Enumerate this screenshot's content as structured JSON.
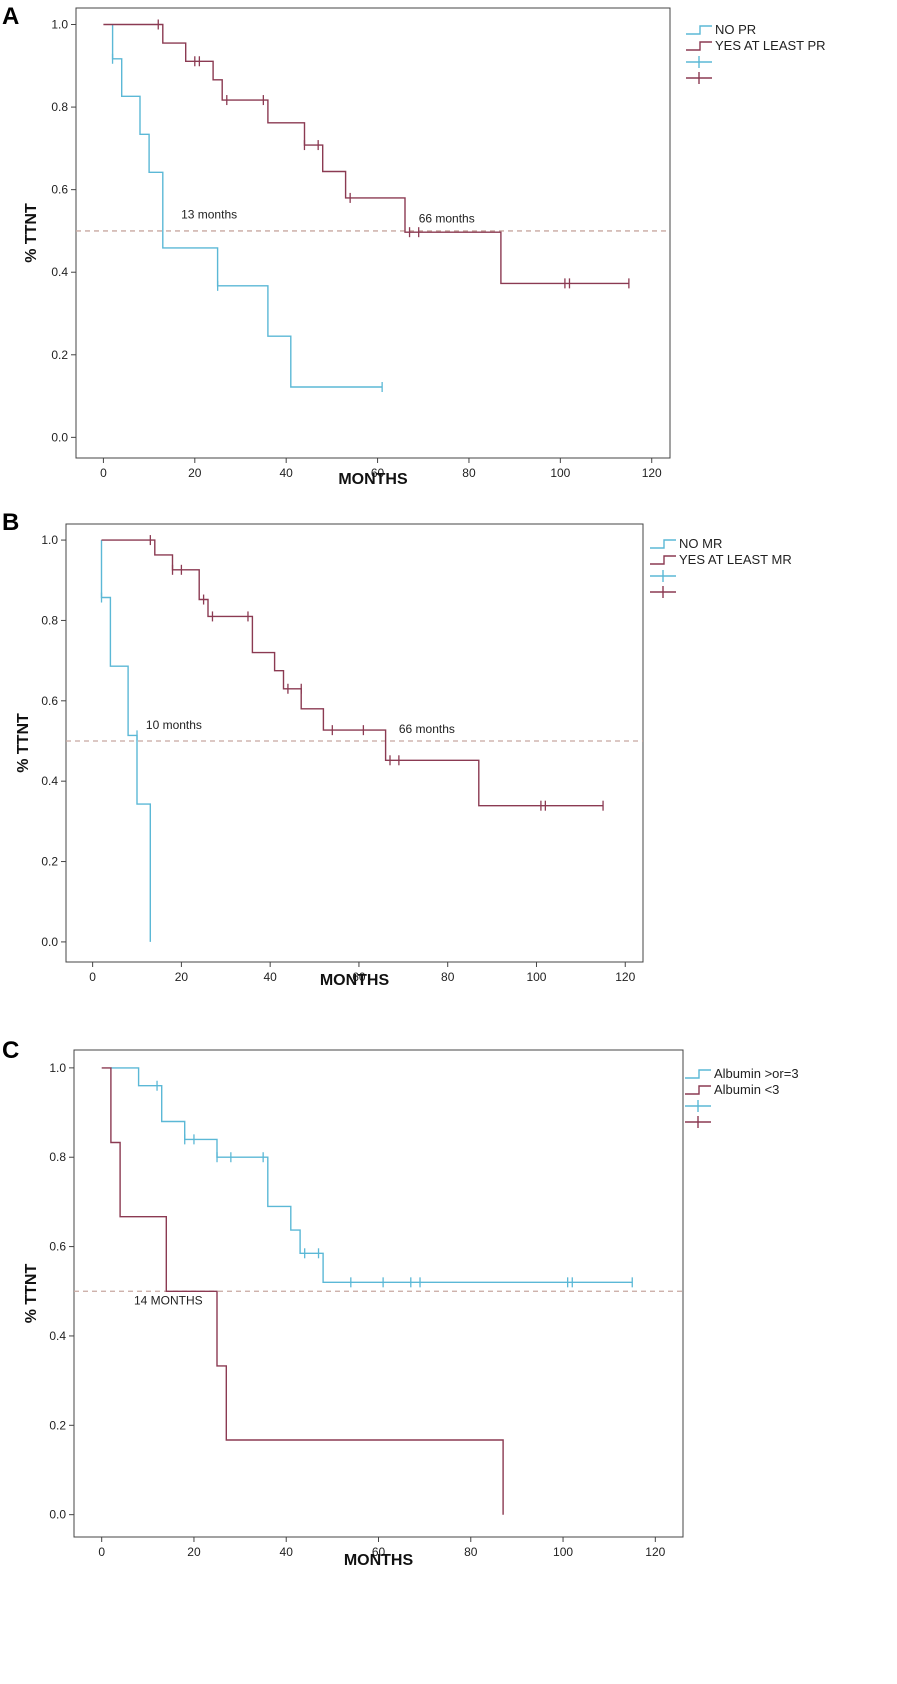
{
  "colors": {
    "blue": "#5bb8d6",
    "maroon": "#8b3a52",
    "median": "#c8a8a0"
  },
  "chart_data": [
    {
      "panel": "A",
      "type": "line",
      "xlabel": "MONTHS",
      "ylabel": "% TTNT",
      "xlim": [
        -6,
        124
      ],
      "ylim": [
        -0.05,
        1.04
      ],
      "xticks": [
        0,
        20,
        40,
        60,
        80,
        100,
        120
      ],
      "yticks": [
        0.0,
        0.2,
        0.4,
        0.6,
        0.8,
        1.0
      ],
      "median_line": 0.5,
      "legend": [
        "NO PR",
        "YES AT LEAST PR",
        "",
        ""
      ],
      "annotations": [
        {
          "text": "13 months",
          "x": 17,
          "y": 0.53
        },
        {
          "text": "66 months",
          "x": 69,
          "y": 0.52
        }
      ],
      "series": [
        {
          "name": "NO PR",
          "color": "blue",
          "points": [
            [
              2,
              1.0
            ],
            [
              2,
              0.917
            ],
            [
              4,
              0.917
            ],
            [
              4,
              0.826
            ],
            [
              8,
              0.826
            ],
            [
              8,
              0.734
            ],
            [
              10,
              0.734
            ],
            [
              10,
              0.642
            ],
            [
              13,
              0.642
            ],
            [
              13,
              0.459
            ],
            [
              25,
              0.459
            ],
            [
              25,
              0.367
            ],
            [
              36,
              0.367
            ],
            [
              36,
              0.245
            ],
            [
              41,
              0.245
            ],
            [
              41,
              0.122
            ],
            [
              61,
              0.122
            ]
          ],
          "censored": [
            [
              2,
              0.917
            ],
            [
              25,
              0.367
            ],
            [
              61,
              0.122
            ]
          ]
        },
        {
          "name": "YES AT LEAST PR",
          "color": "maroon",
          "points": [
            [
              0,
              1.0
            ],
            [
              13,
              1.0
            ],
            [
              13,
              0.955
            ],
            [
              18,
              0.955
            ],
            [
              18,
              0.911
            ],
            [
              24,
              0.911
            ],
            [
              24,
              0.866
            ],
            [
              26,
              0.866
            ],
            [
              26,
              0.817
            ],
            [
              36,
              0.817
            ],
            [
              36,
              0.762
            ],
            [
              44,
              0.762
            ],
            [
              44,
              0.708
            ],
            [
              48,
              0.708
            ],
            [
              48,
              0.644
            ],
            [
              53,
              0.644
            ],
            [
              53,
              0.58
            ],
            [
              66,
              0.58
            ],
            [
              66,
              0.497
            ],
            [
              87,
              0.497
            ],
            [
              87,
              0.373
            ],
            [
              115,
              0.373
            ]
          ],
          "censored": [
            [
              12,
              1.0
            ],
            [
              20,
              0.911
            ],
            [
              21,
              0.911
            ],
            [
              27,
              0.817
            ],
            [
              35,
              0.817
            ],
            [
              44,
              0.708
            ],
            [
              47,
              0.708
            ],
            [
              54,
              0.58
            ],
            [
              67,
              0.497
            ],
            [
              69,
              0.497
            ],
            [
              101,
              0.373
            ],
            [
              102,
              0.373
            ],
            [
              115,
              0.373
            ]
          ]
        }
      ]
    },
    {
      "panel": "B",
      "type": "line",
      "xlabel": "MONTHS",
      "ylabel": "% TTNT",
      "xlim": [
        -6,
        124
      ],
      "ylim": [
        -0.05,
        1.04
      ],
      "xticks": [
        0,
        20,
        40,
        60,
        80,
        100,
        120
      ],
      "yticks": [
        0.0,
        0.2,
        0.4,
        0.6,
        0.8,
        1.0
      ],
      "median_line": 0.5,
      "legend": [
        "NO MR",
        "YES AT LEAST MR",
        "",
        ""
      ],
      "annotations": [
        {
          "text": "10 months",
          "x": 12,
          "y": 0.53
        },
        {
          "text": "66 months",
          "x": 69,
          "y": 0.52
        }
      ],
      "series": [
        {
          "name": "NO MR",
          "color": "blue",
          "points": [
            [
              2,
              1.0
            ],
            [
              2,
              0.857
            ],
            [
              4,
              0.857
            ],
            [
              4,
              0.686
            ],
            [
              8,
              0.686
            ],
            [
              8,
              0.514
            ],
            [
              10,
              0.514
            ],
            [
              10,
              0.343
            ],
            [
              13,
              0.343
            ],
            [
              13,
              0.0
            ]
          ],
          "censored": [
            [
              2,
              0.857
            ],
            [
              10,
              0.514
            ]
          ]
        },
        {
          "name": "YES AT LEAST MR",
          "color": "maroon",
          "points": [
            [
              2,
              1.0
            ],
            [
              14,
              1.0
            ],
            [
              14,
              0.963
            ],
            [
              18,
              0.963
            ],
            [
              18,
              0.926
            ],
            [
              24,
              0.926
            ],
            [
              24,
              0.852
            ],
            [
              26,
              0.852
            ],
            [
              26,
              0.81
            ],
            [
              36,
              0.81
            ],
            [
              36,
              0.72
            ],
            [
              41,
              0.72
            ],
            [
              41,
              0.675
            ],
            [
              43,
              0.675
            ],
            [
              43,
              0.63
            ],
            [
              47,
              0.63
            ],
            [
              47,
              0.58
            ],
            [
              52,
              0.58
            ],
            [
              52,
              0.527
            ],
            [
              66,
              0.527
            ],
            [
              66,
              0.452
            ],
            [
              87,
              0.452
            ],
            [
              87,
              0.339
            ],
            [
              115,
              0.339
            ]
          ],
          "censored": [
            [
              13,
              1.0
            ],
            [
              18,
              0.926
            ],
            [
              20,
              0.926
            ],
            [
              25,
              0.852
            ],
            [
              27,
              0.81
            ],
            [
              35,
              0.81
            ],
            [
              44,
              0.63
            ],
            [
              47,
              0.63
            ],
            [
              54,
              0.527
            ],
            [
              61,
              0.527
            ],
            [
              67,
              0.452
            ],
            [
              69,
              0.452
            ],
            [
              101,
              0.339
            ],
            [
              102,
              0.339
            ],
            [
              115,
              0.339
            ]
          ]
        }
      ]
    },
    {
      "panel": "C",
      "type": "line",
      "xlabel": "MONTHS",
      "ylabel": "% TTNT",
      "xlim": [
        -6,
        126
      ],
      "ylim": [
        -0.05,
        1.04
      ],
      "xticks": [
        0,
        20,
        40,
        60,
        80,
        100,
        120
      ],
      "yticks": [
        0.0,
        0.2,
        0.4,
        0.6,
        0.8,
        1.0
      ],
      "median_line": 0.5,
      "legend": [
        "Albumin >or=3",
        "Albumin <3",
        "",
        ""
      ],
      "annotations": [
        {
          "text": "14 MONTHS",
          "x": 7,
          "y": 0.47
        }
      ],
      "series": [
        {
          "name": "Albumin >or=3",
          "color": "blue",
          "points": [
            [
              2,
              1.0
            ],
            [
              8,
              1.0
            ],
            [
              8,
              0.96
            ],
            [
              13,
              0.96
            ],
            [
              13,
              0.88
            ],
            [
              18,
              0.88
            ],
            [
              18,
              0.84
            ],
            [
              25,
              0.84
            ],
            [
              25,
              0.8
            ],
            [
              36,
              0.8
            ],
            [
              36,
              0.69
            ],
            [
              41,
              0.69
            ],
            [
              41,
              0.637
            ],
            [
              43,
              0.637
            ],
            [
              43,
              0.585
            ],
            [
              48,
              0.585
            ],
            [
              48,
              0.52
            ],
            [
              115,
              0.52
            ]
          ],
          "censored": [
            [
              12,
              0.96
            ],
            [
              18,
              0.84
            ],
            [
              20,
              0.84
            ],
            [
              25,
              0.8
            ],
            [
              28,
              0.8
            ],
            [
              35,
              0.8
            ],
            [
              44,
              0.585
            ],
            [
              47,
              0.585
            ],
            [
              54,
              0.52
            ],
            [
              61,
              0.52
            ],
            [
              67,
              0.52
            ],
            [
              69,
              0.52
            ],
            [
              101,
              0.52
            ],
            [
              102,
              0.52
            ],
            [
              115,
              0.52
            ]
          ]
        },
        {
          "name": "Albumin <3",
          "color": "maroon",
          "points": [
            [
              0,
              1.0
            ],
            [
              2,
              1.0
            ],
            [
              2,
              0.833
            ],
            [
              4,
              0.833
            ],
            [
              4,
              0.667
            ],
            [
              14,
              0.667
            ],
            [
              14,
              0.5
            ],
            [
              25,
              0.5
            ],
            [
              25,
              0.333
            ],
            [
              27,
              0.333
            ],
            [
              27,
              0.167
            ],
            [
              87,
              0.167
            ],
            [
              87,
              0.0
            ]
          ],
          "censored": []
        }
      ]
    }
  ]
}
